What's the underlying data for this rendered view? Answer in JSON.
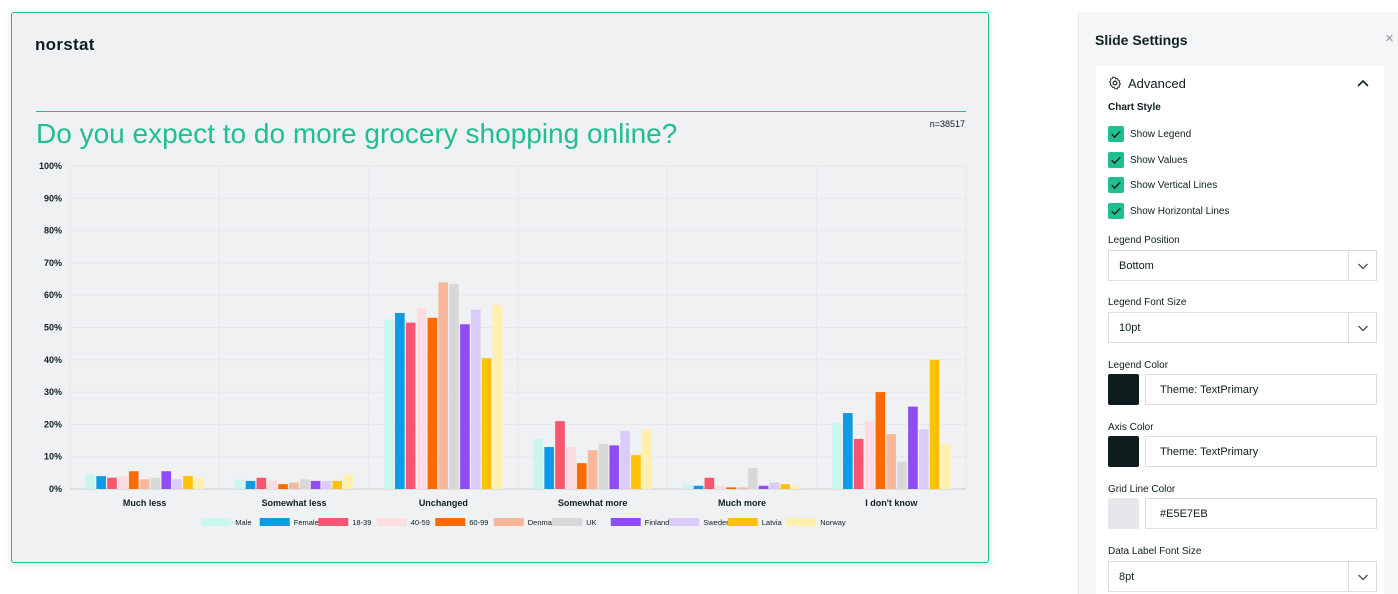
{
  "slide": {
    "logo": "norstat",
    "question": "Do you expect to do more grocery shopping online?",
    "n_label": "n=38517"
  },
  "chart_data": {
    "type": "bar",
    "categories": [
      "Much less",
      "Somewhat less",
      "Unchanged",
      "Somewhat more",
      "Much more",
      "I don't know"
    ],
    "ylim": [
      0,
      100
    ],
    "yticks": [
      "0%",
      "10%",
      "20%",
      "30%",
      "40%",
      "50%",
      "60%",
      "70%",
      "80%",
      "90%",
      "100%"
    ],
    "grid": true,
    "vertical_lines": true,
    "legend_position": "bottom",
    "series": [
      {
        "name": "Male",
        "color": "#c9f7ef",
        "values": [
          4.5,
          3.0,
          52.5,
          15.5,
          1.5,
          20.5
        ]
      },
      {
        "name": "Female",
        "color": "#0e9be6",
        "values": [
          4.0,
          2.5,
          54.5,
          13.0,
          1.0,
          23.5
        ]
      },
      {
        "name": "18-39",
        "color": "#f6566f",
        "values": [
          3.5,
          3.5,
          51.5,
          21.0,
          3.5,
          15.5
        ]
      },
      {
        "name": "40-59",
        "color": "#fcdde1",
        "values": [
          4.0,
          2.5,
          56.0,
          13.0,
          1.0,
          21.0
        ]
      },
      {
        "name": "60-99",
        "color": "#ff6a00",
        "values": [
          5.5,
          1.5,
          53.0,
          8.0,
          0.5,
          30.0
        ]
      },
      {
        "name": "Denmark",
        "color": "#f8b79a",
        "values": [
          3.0,
          2.0,
          64.0,
          12.0,
          0.5,
          17.0
        ]
      },
      {
        "name": "UK",
        "color": "#d8d8d8",
        "values": [
          3.5,
          3.0,
          63.5,
          14.0,
          6.5,
          8.5
        ]
      },
      {
        "name": "Finland",
        "color": "#8e4cf7",
        "values": [
          5.5,
          2.5,
          51.0,
          13.5,
          1.0,
          25.5
        ]
      },
      {
        "name": "Sweden",
        "color": "#d9ccfa",
        "values": [
          3.0,
          2.5,
          55.5,
          18.0,
          2.0,
          18.5
        ]
      },
      {
        "name": "Latvia",
        "color": "#ffc107",
        "values": [
          4.0,
          2.5,
          40.5,
          10.5,
          1.5,
          40.0
        ]
      },
      {
        "name": "Norway",
        "color": "#fff0b0",
        "values": [
          3.5,
          4.5,
          57.0,
          18.5,
          1.0,
          14.0
        ]
      }
    ]
  },
  "panel": {
    "title": "Slide Settings",
    "close_icon": "×",
    "advanced_label": "Advanced",
    "chart_style_label": "Chart Style",
    "checkboxes": [
      {
        "label": "Show Legend",
        "checked": true
      },
      {
        "label": "Show Values",
        "checked": true
      },
      {
        "label": "Show Vertical Lines",
        "checked": true
      },
      {
        "label": "Show Horizontal Lines",
        "checked": true
      }
    ],
    "legend_position": {
      "label": "Legend Position",
      "value": "Bottom"
    },
    "legend_font_size": {
      "label": "Legend Font Size",
      "value": "10pt"
    },
    "legend_color": {
      "label": "Legend Color",
      "swatch": "#0c1c1c",
      "value": "Theme: TextPrimary"
    },
    "axis_color": {
      "label": "Axis Color",
      "swatch": "#0c1c1c",
      "value": "Theme: TextPrimary"
    },
    "grid_line_color": {
      "label": "Grid Line Color",
      "swatch": "#e5e7eb",
      "value": "#E5E7EB"
    },
    "data_label_font_size": {
      "label": "Data Label Font Size",
      "value": "8pt"
    }
  }
}
